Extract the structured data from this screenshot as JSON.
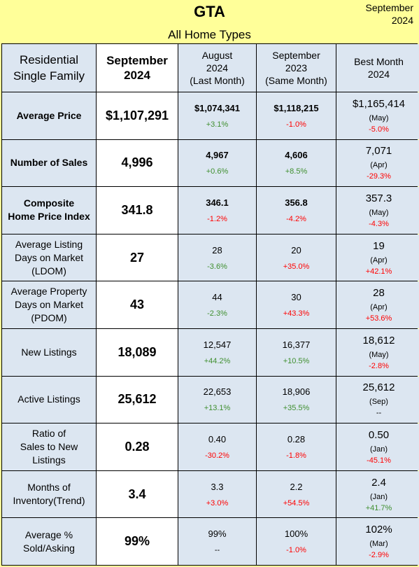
{
  "header": {
    "title": "GTA",
    "subtitle": "All Home Types",
    "date": [
      "September",
      "2024"
    ]
  },
  "table": {
    "columns": [
      [
        "Residential",
        "Single Family"
      ],
      [
        "September",
        "2024"
      ],
      [
        "August",
        "2024",
        "(Last Month)"
      ],
      [
        "September",
        "2023",
        "(Same Month)"
      ],
      [
        "Best Month",
        "2024"
      ]
    ],
    "rows": [
      {
        "label": [
          "Average Price"
        ],
        "bold": true,
        "current": "$1,107,291",
        "last": {
          "value": "$1,074,341",
          "change": {
            "text": "+3.1%",
            "color": "#3f8f2f"
          }
        },
        "same": {
          "value": "$1,118,215",
          "change": {
            "text": "-1.0%",
            "color": "#ff0000"
          }
        },
        "best": {
          "value": "$1,165,414",
          "month": "(May)",
          "change": {
            "text": "-5.0%",
            "color": "#ff0000"
          }
        }
      },
      {
        "label": [
          "Number of Sales"
        ],
        "bold": true,
        "current": "4,996",
        "last": {
          "value": "4,967",
          "change": {
            "text": "+0.6%",
            "color": "#3f8f2f"
          }
        },
        "same": {
          "value": "4,606",
          "change": {
            "text": "+8.5%",
            "color": "#3f8f2f"
          }
        },
        "best": {
          "value": "7,071",
          "month": "(Apr)",
          "change": {
            "text": "-29.3%",
            "color": "#ff0000"
          }
        }
      },
      {
        "label": [
          "Composite",
          "Home Price Index"
        ],
        "bold": true,
        "current": "341.8",
        "last": {
          "value": "346.1",
          "change": {
            "text": "-1.2%",
            "color": "#ff0000"
          }
        },
        "same": {
          "value": "356.8",
          "change": {
            "text": "-4.2%",
            "color": "#ff0000"
          }
        },
        "best": {
          "value": "357.3",
          "month": "(May)",
          "change": {
            "text": "-4.3%",
            "color": "#ff0000"
          }
        }
      },
      {
        "label": [
          "Average Listing",
          "Days on Market",
          "(LDOM)"
        ],
        "bold": false,
        "current": "27",
        "last": {
          "value": "28",
          "change": {
            "text": "-3.6%",
            "color": "#3f8f2f"
          }
        },
        "same": {
          "value": "20",
          "change": {
            "text": "+35.0%",
            "color": "#ff0000"
          }
        },
        "best": {
          "value": "19",
          "month": "(Apr)",
          "change": {
            "text": "+42.1%",
            "color": "#ff0000"
          }
        }
      },
      {
        "label": [
          "Average Property",
          "Days on Market",
          "(PDOM)"
        ],
        "bold": false,
        "current": "43",
        "last": {
          "value": "44",
          "change": {
            "text": "-2.3%",
            "color": "#3f8f2f"
          }
        },
        "same": {
          "value": "30",
          "change": {
            "text": "+43.3%",
            "color": "#ff0000"
          }
        },
        "best": {
          "value": "28",
          "month": "(Apr)",
          "change": {
            "text": "+53.6%",
            "color": "#ff0000"
          }
        }
      },
      {
        "label": [
          "New Listings"
        ],
        "bold": false,
        "current": "18,089",
        "last": {
          "value": "12,547",
          "change": {
            "text": "+44.2%",
            "color": "#3f8f2f"
          }
        },
        "same": {
          "value": "16,377",
          "change": {
            "text": "+10.5%",
            "color": "#3f8f2f"
          }
        },
        "best": {
          "value": "18,612",
          "month": "(May)",
          "change": {
            "text": "-2.8%",
            "color": "#ff0000"
          }
        }
      },
      {
        "label": [
          "Active Listings"
        ],
        "bold": false,
        "current": "25,612",
        "last": {
          "value": "22,653",
          "change": {
            "text": "+13.1%",
            "color": "#3f8f2f"
          }
        },
        "same": {
          "value": "18,906",
          "change": {
            "text": "+35.5%",
            "color": "#3f8f2f"
          }
        },
        "best": {
          "value": "25,612",
          "month": "(Sep)",
          "change": {
            "text": "--",
            "color": "#000000"
          }
        }
      },
      {
        "label": [
          "Ratio of",
          "Sales to New",
          "Listings"
        ],
        "bold": false,
        "current": "0.28",
        "last": {
          "value": "0.40",
          "change": {
            "text": "-30.2%",
            "color": "#ff0000"
          }
        },
        "same": {
          "value": "0.28",
          "change": {
            "text": "-1.8%",
            "color": "#ff0000"
          }
        },
        "best": {
          "value": "0.50",
          "month": "(Jan)",
          "change": {
            "text": "-45.1%",
            "color": "#ff0000"
          }
        }
      },
      {
        "label": [
          "Months of",
          "Inventory(Trend)"
        ],
        "bold": false,
        "current": "3.4",
        "last": {
          "value": "3.3",
          "change": {
            "text": "+3.0%",
            "color": "#ff0000"
          }
        },
        "same": {
          "value": "2.2",
          "change": {
            "text": "+54.5%",
            "color": "#ff0000"
          }
        },
        "best": {
          "value": "2.4",
          "month": "(Jan)",
          "change": {
            "text": "+41.7%",
            "color": "#3f8f2f"
          }
        }
      },
      {
        "label": [
          "Average %",
          "Sold/Asking"
        ],
        "bold": false,
        "current": "99%",
        "last": {
          "value": "99%",
          "change": {
            "text": "--",
            "color": "#000000"
          }
        },
        "same": {
          "value": "100%",
          "change": {
            "text": "-1.0%",
            "color": "#ff0000"
          }
        },
        "best": {
          "value": "102%",
          "month": "(Mar)",
          "change": {
            "text": "-2.9%",
            "color": "#ff0000"
          }
        }
      }
    ]
  }
}
